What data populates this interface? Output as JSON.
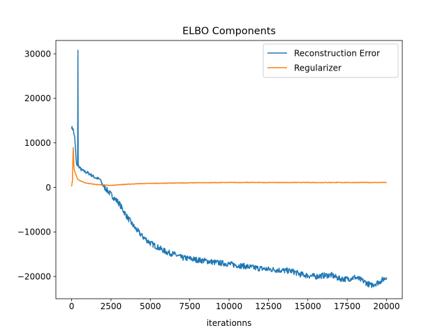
{
  "chart_data": {
    "type": "line",
    "title": "ELBO Components",
    "xlabel": "iterationns",
    "ylabel": "",
    "xlim": [
      -1000,
      21000
    ],
    "ylim": [
      -25000,
      33000
    ],
    "xticks": [
      0,
      2500,
      5000,
      7500,
      10000,
      12500,
      15000,
      17500,
      20000
    ],
    "yticks": [
      -20000,
      -10000,
      0,
      10000,
      20000,
      30000
    ],
    "legend_position": "top-right",
    "grid": false,
    "series": [
      {
        "name": "Reconstruction Error",
        "color": "#1f77b4",
        "x": [
          0,
          100,
          200,
          300,
          380,
          400,
          420,
          500,
          600,
          800,
          1000,
          1200,
          1500,
          1800,
          2000,
          2300,
          2600,
          3000,
          3500,
          4000,
          4500,
          5000,
          5500,
          6000,
          6500,
          7000,
          7500,
          8000,
          8500,
          9000,
          9500,
          10000,
          10500,
          11000,
          11500,
          12000,
          12500,
          13000,
          13500,
          14000,
          14500,
          15000,
          15500,
          16000,
          16500,
          17000,
          17500,
          18000,
          18500,
          19000,
          19500,
          20000
        ],
        "y": [
          13500,
          13000,
          11000,
          5500,
          4800,
          30800,
          5000,
          4500,
          4000,
          3600,
          3300,
          2900,
          2200,
          1800,
          400,
          -800,
          -2000,
          -3500,
          -6500,
          -9000,
          -11000,
          -12500,
          -13500,
          -14500,
          -15000,
          -15800,
          -16000,
          -16300,
          -16500,
          -16800,
          -17000,
          -17200,
          -17500,
          -17700,
          -18000,
          -18200,
          -18400,
          -18500,
          -18700,
          -18800,
          -19500,
          -19800,
          -20000,
          -19800,
          -19700,
          -20500,
          -20600,
          -20200,
          -21000,
          -22000,
          -21300,
          -20200
        ]
      },
      {
        "name": "Regularizer",
        "color": "#ff7f0e",
        "x": [
          0,
          50,
          100,
          150,
          200,
          300,
          400,
          600,
          800,
          1000,
          1500,
          2000,
          2500,
          3000,
          3500,
          4000,
          5000,
          6000,
          7000,
          8000,
          10000,
          12000,
          14000,
          16000,
          18000,
          20000
        ],
        "y": [
          300,
          1500,
          9000,
          4500,
          3500,
          2600,
          1800,
          1400,
          1100,
          900,
          700,
          500,
          450,
          600,
          700,
          800,
          900,
          950,
          1000,
          1050,
          1100,
          1100,
          1100,
          1100,
          1100,
          1100
        ]
      }
    ]
  }
}
